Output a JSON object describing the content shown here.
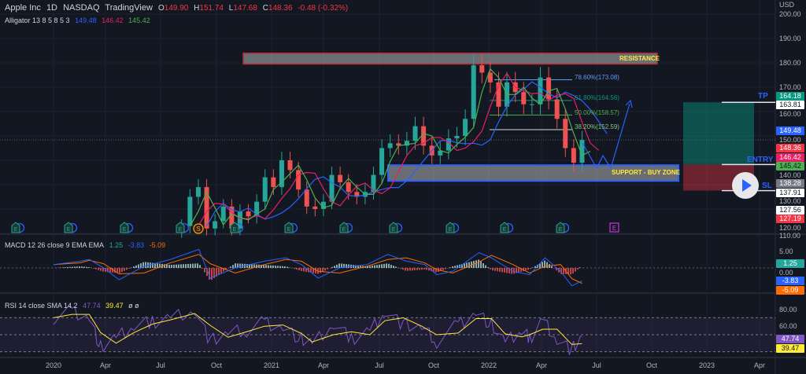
{
  "header": {
    "symbol": "Apple Inc",
    "interval": "1D",
    "exchange": "NASDAQ",
    "source": "TradingView",
    "ohlc": {
      "o_label": "O",
      "o": "149.90",
      "h_label": "H",
      "h": "151.74",
      "l_label": "L",
      "l": "147.68",
      "c_label": "C",
      "c": "148.36",
      "change": "-0.48 (-0.32%)"
    },
    "alligator": {
      "label": "Alligator 13 8 5 8 5 3",
      "jaw": "149.48",
      "teeth": "146.42",
      "lips": "145.42"
    }
  },
  "macd_legend": {
    "label": "MACD 12 26 close 9 EMA EMA",
    "hist": "1.25",
    "macd": "-3.83",
    "signal": "-5.09"
  },
  "rsi_legend": {
    "label": "RSI 14 close SMA 14 2",
    "rsi": "47.74",
    "sma": "39.47",
    "extra": "ø ø"
  },
  "currency": "USD",
  "annotations": {
    "resistance": "RESISTANCE",
    "support": "SUPPORT - BUY ZONE",
    "tp": "TP",
    "entry": "ENTRY",
    "sl": "SL",
    "fib": [
      "78.60%(173.08)",
      "61.80%(164.56)",
      "50.00%(158.57)",
      "38.20%(152.59)"
    ]
  },
  "price_tags": [
    {
      "v": "164.18",
      "bg": "#089981",
      "fg": "#ffffff"
    },
    {
      "v": "163.81",
      "bg": "#ffffff",
      "fg": "#131722"
    },
    {
      "v": "149.48",
      "bg": "#2962ff",
      "fg": "#ffffff"
    },
    {
      "v": "148.36",
      "bg": "#f23645",
      "fg": "#ffffff"
    },
    {
      "v": "146.42",
      "bg": "#e91e63",
      "fg": "#ffffff"
    },
    {
      "v": "145.42",
      "bg": "#4caf50",
      "fg": "#131722"
    },
    {
      "v": "138.28",
      "bg": "#787b86",
      "fg": "#ffffff"
    },
    {
      "v": "137.91",
      "bg": "#ffffff",
      "fg": "#131722"
    },
    {
      "v": "127.56",
      "bg": "#ffffff",
      "fg": "#131722"
    },
    {
      "v": "127.19",
      "bg": "#f23645",
      "fg": "#ffffff"
    },
    {
      "v": "1.25",
      "bg": "#26a69a",
      "fg": "#ffffff"
    },
    {
      "v": "-3.83",
      "bg": "#2962ff",
      "fg": "#ffffff"
    },
    {
      "v": "-5.09",
      "bg": "#ff6d00",
      "fg": "#ffffff"
    },
    {
      "v": "47.74",
      "bg": "#7e57c2",
      "fg": "#ffffff"
    },
    {
      "v": "39.47",
      "bg": "#ffeb3b",
      "fg": "#131722"
    }
  ],
  "price_axis": [
    "200.00",
    "190.00",
    "180.00",
    "170.00",
    "160.00",
    "150.00",
    "140.00",
    "130.00",
    "120.00",
    "110.00"
  ],
  "macd_axis": [
    "5.00",
    "0.00"
  ],
  "rsi_axis": [
    "80.00",
    "60.00"
  ],
  "icons": {
    "earnings": "earnings-e-icon",
    "split": "split-s-icon",
    "play": "play-icon"
  },
  "chart_data": {
    "type": "candlestick",
    "title": "Apple Inc · 1D · NASDAQ",
    "x_ticks": [
      "2020",
      "Apr",
      "Jul",
      "Oct",
      "2021",
      "Apr",
      "Jul",
      "Oct",
      "2022",
      "Apr",
      "Jul",
      "Oct",
      "2023",
      "Apr"
    ],
    "ylim": [
      105,
      202
    ],
    "dates": [
      "2020-08-03",
      "2020-08-17",
      "2020-08-31",
      "2020-09-14",
      "2020-09-28",
      "2020-10-12",
      "2020-10-26",
      "2020-11-09",
      "2020-11-23",
      "2020-12-07",
      "2020-12-21",
      "2021-01-04",
      "2021-01-18",
      "2021-02-01",
      "2021-02-15",
      "2021-03-01",
      "2021-03-15",
      "2021-03-29",
      "2021-04-12",
      "2021-04-26",
      "2021-05-10",
      "2021-05-24",
      "2021-06-07",
      "2021-06-21",
      "2021-07-05",
      "2021-07-19",
      "2021-08-02",
      "2021-08-16",
      "2021-08-30",
      "2021-09-13",
      "2021-09-27",
      "2021-10-11",
      "2021-10-25",
      "2021-11-08",
      "2021-11-22",
      "2021-12-06",
      "2021-12-20",
      "2022-01-03",
      "2022-01-17",
      "2022-01-31",
      "2022-02-14",
      "2022-02-28",
      "2022-03-14",
      "2022-03-28",
      "2022-04-11",
      "2022-04-25",
      "2022-05-09",
      "2022-05-23",
      "2022-06-06"
    ],
    "close": [
      113,
      125,
      129,
      112,
      115,
      121,
      112,
      119,
      117,
      123,
      133,
      129,
      140,
      136,
      128,
      121,
      120,
      123,
      134,
      131,
      127,
      125,
      127,
      134,
      145,
      147,
      146,
      148,
      154,
      146,
      142,
      144,
      149,
      150,
      157,
      179,
      176,
      172,
      162,
      172,
      168,
      163,
      163,
      174,
      165,
      157,
      145,
      139,
      148.36
    ],
    "alligator": {
      "jaw": 149.48,
      "teeth": 146.42,
      "lips": 145.42
    },
    "zones": {
      "resistance": [
        179.5,
        184
      ],
      "support": [
        131.5,
        138
      ]
    },
    "fibonacci": [
      {
        "level": "78.60%",
        "price": 173.08
      },
      {
        "level": "61.80%",
        "price": 164.56
      },
      {
        "level": "50.00%",
        "price": 158.57
      },
      {
        "level": "38.20%",
        "price": 152.59
      }
    ],
    "position": {
      "tp": 163.81,
      "entry": 138.28,
      "sl": 127.56
    },
    "macd": {
      "dates": [
        "2020-01-01",
        "2020-02-15",
        "2020-03-01",
        "2020-03-25",
        "2020-04-20",
        "2020-06-01",
        "2020-07-15",
        "2020-09-01",
        "2020-09-20",
        "2020-11-01",
        "2020-12-20",
        "2021-01-25",
        "2021-02-20",
        "2021-03-20",
        "2021-04-25",
        "2021-06-10",
        "2021-07-15",
        "2021-08-15",
        "2021-09-15",
        "2021-10-05",
        "2021-11-01",
        "2021-12-15",
        "2022-01-05",
        "2022-02-10",
        "2022-03-10",
        "2022-04-05",
        "2022-05-01",
        "2022-05-20",
        "2022-06-06"
      ],
      "values": [
        1,
        2,
        2.5,
        0,
        -3.5,
        0.5,
        2.5,
        5.5,
        -3,
        0,
        2,
        3,
        1,
        -3,
        0,
        1,
        4,
        2,
        1,
        -2,
        -1,
        4.5,
        3,
        -1,
        -2,
        3,
        -1,
        -5.3,
        -3.83
      ]
    },
    "rsi": {
      "dates": [
        "2020-01-01",
        "2020-02-01",
        "2020-03-01",
        "2020-03-20",
        "2020-04-15",
        "2020-05-15",
        "2020-06-15",
        "2020-07-15",
        "2020-08-25",
        "2020-09-20",
        "2020-10-20",
        "2020-11-20",
        "2020-12-20",
        "2021-01-20",
        "2021-02-20",
        "2021-03-10",
        "2021-04-15",
        "2021-05-15",
        "2021-06-15",
        "2021-07-10",
        "2021-08-10",
        "2021-09-10",
        "2021-10-05",
        "2021-11-10",
        "2021-12-10",
        "2022-01-05",
        "2022-01-28",
        "2022-02-25",
        "2022-03-10",
        "2022-04-01",
        "2022-04-25",
        "2022-05-20",
        "2022-06-06"
      ],
      "values": [
        70,
        78,
        70,
        35,
        45,
        60,
        65,
        70,
        80,
        42,
        52,
        55,
        65,
        58,
        45,
        38,
        62,
        45,
        55,
        78,
        62,
        58,
        42,
        62,
        76,
        62,
        40,
        55,
        45,
        68,
        45,
        32,
        47.74
      ]
    }
  }
}
